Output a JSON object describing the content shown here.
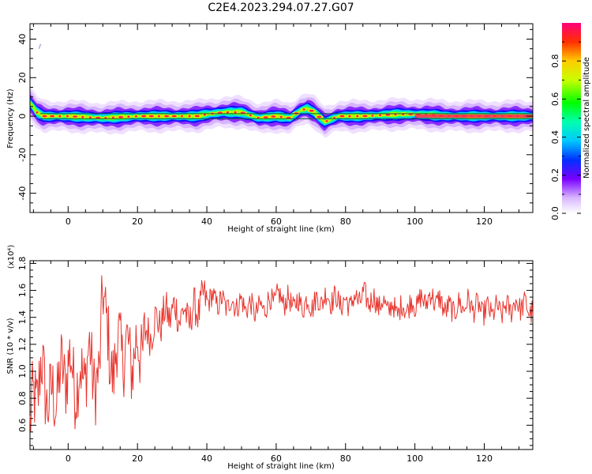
{
  "title": "C2E4.2023.294.07.27.G07",
  "chart_data": [
    {
      "type": "heatmap",
      "xlabel": "Height of straight line (km)",
      "ylabel": "Frequency (Hz)",
      "xlim": [
        -11,
        134
      ],
      "ylim": [
        -50,
        48
      ],
      "xticks": [
        "0",
        "20",
        "40",
        "60",
        "80",
        "100",
        "120"
      ],
      "yticks": [
        "40",
        "20",
        "0",
        "-20",
        "-40"
      ],
      "colorbar": {
        "label": "Normalized spectral amplitude",
        "range": [
          0,
          1
        ],
        "ticks": [
          "0.0",
          "0.2",
          "0.4",
          "0.6",
          "0.8"
        ]
      },
      "ridge": {
        "x": [
          -11,
          -9,
          -7,
          0,
          10,
          20,
          30,
          37,
          40,
          45,
          50,
          55,
          60,
          64,
          67,
          69,
          71,
          74,
          78,
          85,
          95,
          100,
          110,
          120,
          134
        ],
        "y": [
          7,
          2,
          0,
          0,
          -1,
          0,
          0,
          0,
          1,
          2,
          2,
          -1,
          0,
          -1,
          3,
          4,
          2,
          -3,
          0,
          0,
          1,
          1,
          0,
          0,
          0
        ]
      }
    },
    {
      "type": "line",
      "xlabel": "Height of straight line (km)",
      "ylabel": "SNR (10 * v/v)",
      "y_multiplier": "(x10⁴)",
      "xlim": [
        -11,
        134
      ],
      "ylim": [
        0.42,
        1.82
      ],
      "xticks": [
        "0",
        "20",
        "40",
        "60",
        "80",
        "100",
        "120"
      ],
      "yticks": [
        "0.6",
        "0.8",
        "1.0",
        "1.2",
        "1.4",
        "1.6",
        "1.8"
      ],
      "series": [
        {
          "color": "#e8362f",
          "x": [
            -11,
            -8,
            -5,
            -2,
            0,
            3,
            6,
            9,
            10,
            12,
            15,
            18,
            20,
            25,
            30,
            35,
            40,
            45,
            50,
            55,
            60,
            65,
            70,
            75,
            80,
            85,
            90,
            95,
            100,
            105,
            110,
            115,
            120,
            125,
            130,
            134
          ],
          "y": [
            0.6,
            1.0,
            0.75,
            0.95,
            1.05,
            0.9,
            1.1,
            0.85,
            1.75,
            1.0,
            1.2,
            1.1,
            1.15,
            1.35,
            1.45,
            1.4,
            1.55,
            1.5,
            1.5,
            1.45,
            1.55,
            1.5,
            1.5,
            1.55,
            1.5,
            1.55,
            1.5,
            1.45,
            1.5,
            1.55,
            1.45,
            1.5,
            1.45,
            1.45,
            1.5,
            1.45
          ]
        }
      ]
    }
  ]
}
